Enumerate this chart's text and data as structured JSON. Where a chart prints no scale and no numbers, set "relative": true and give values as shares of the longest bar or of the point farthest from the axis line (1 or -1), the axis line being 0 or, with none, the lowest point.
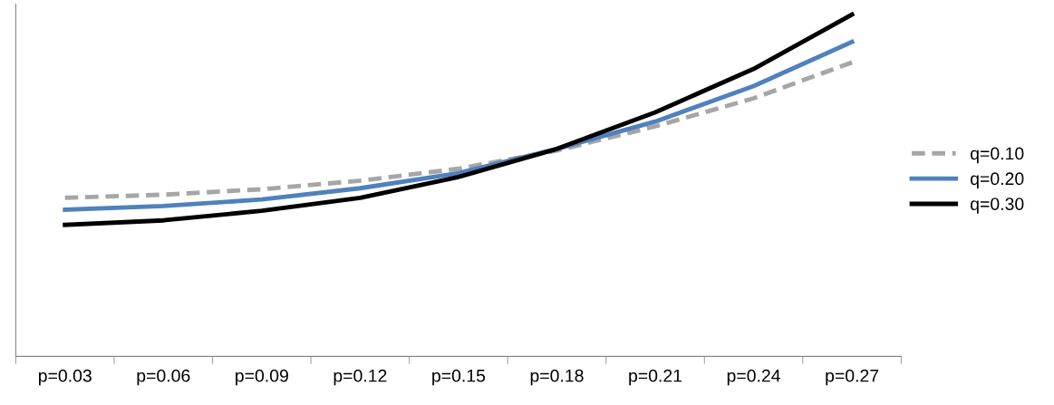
{
  "chart_data": {
    "type": "line",
    "relative": true,
    "categories": [
      "p=0.03",
      "p=0.06",
      "p=0.09",
      "p=0.12",
      "p=0.15",
      "p=0.18",
      "p=0.21",
      "p=0.24",
      "p=0.27"
    ],
    "series": [
      {
        "name": "q=0.10",
        "color": "#a6a6a6",
        "line_style": "dashed",
        "values": [
          0.464,
          0.473,
          0.489,
          0.514,
          0.549,
          0.602,
          0.673,
          0.755,
          0.86
        ]
      },
      {
        "name": "q=0.20",
        "color": "#4f81bd",
        "line_style": "solid",
        "values": [
          0.429,
          0.44,
          0.459,
          0.492,
          0.536,
          0.607,
          0.687,
          0.791,
          0.92
        ]
      },
      {
        "name": "q=0.30",
        "color": "#000000",
        "line_style": "solid",
        "values": [
          0.385,
          0.398,
          0.426,
          0.464,
          0.525,
          0.607,
          0.714,
          0.841,
          1
        ]
      }
    ],
    "legend": "right",
    "grid": false,
    "marker": "none"
  }
}
